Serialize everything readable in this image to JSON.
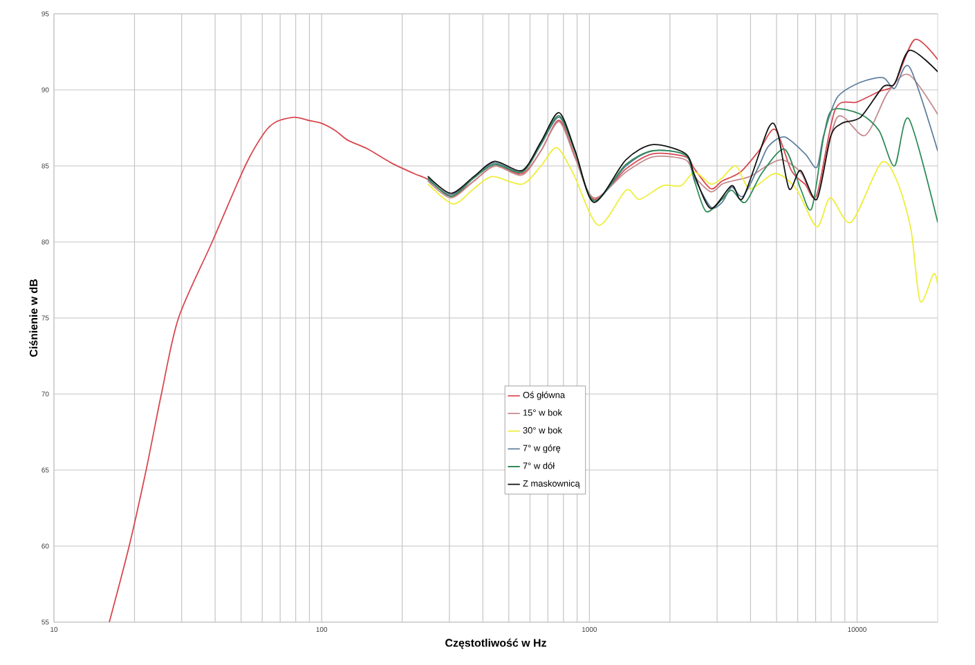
{
  "chart_data": {
    "type": "line",
    "xlabel": "Częstotliwość w Hz",
    "ylabel": "Ciśnienie w dB",
    "xlim": [
      10,
      20000
    ],
    "ylim": [
      55,
      95
    ],
    "xticks": [
      10,
      100,
      1000,
      10000
    ],
    "yticks": [
      55,
      60,
      65,
      70,
      75,
      80,
      85,
      90,
      95
    ],
    "log": "x",
    "grid": true,
    "legend": "bottom",
    "series": [
      {
        "name": "Oś główna",
        "color": "#d8474f",
        "x": [
          16.1,
          19.1,
          22.1,
          25.2,
          29.2,
          39.0,
          51.8,
          61.2,
          67.6,
          79,
          89,
          100,
          113,
          125,
          149,
          182,
          221,
          250,
          304,
          370,
          443,
          561,
          660,
          771,
          885,
          1040,
          1370,
          1730,
          2290,
          2470,
          2840,
          3130,
          3670,
          4300,
          4940,
          5680,
          6390,
          7070,
          8280,
          10000,
          12100,
          13800,
          16400,
          20000
        ],
        "values": [
          55,
          60,
          65,
          70,
          75,
          80,
          85,
          87.2,
          87.9,
          88.2,
          88.0,
          87.8,
          87.3,
          86.7,
          86.1,
          85.2,
          84.5,
          84.1,
          83.0,
          84.0,
          85.0,
          84.5,
          86.0,
          88.0,
          85.6,
          82.8,
          84.8,
          85.8,
          85.6,
          84.8,
          83.5,
          84.0,
          84.6,
          86.0,
          87.4,
          84.7,
          83.8,
          83.1,
          88.7,
          89.2,
          89.9,
          90.4,
          93.3,
          92.0
        ]
      },
      {
        "name": "15° w bok",
        "color": "#c48a8e",
        "x": [
          250,
          304,
          370,
          443,
          561,
          660,
          771,
          885,
          1040,
          1370,
          1730,
          2290,
          2470,
          2840,
          3130,
          3400,
          3980,
          4600,
          5250,
          6150,
          7070,
          8430,
          10700,
          13000,
          15600,
          20000
        ],
        "values": [
          84.0,
          82.9,
          84.0,
          85.0,
          84.4,
          86.0,
          87.9,
          85.5,
          82.9,
          84.6,
          85.6,
          85.4,
          84.3,
          83.3,
          83.8,
          84.0,
          84.3,
          85.0,
          85.4,
          84.6,
          83.0,
          88.2,
          87.0,
          89.8,
          91.0,
          88.4
        ]
      },
      {
        "name": "30° w bok",
        "color": "#eeee3a",
        "x": [
          250,
          310,
          370,
          434,
          561,
          660,
          755,
          870,
          1080,
          1370,
          1540,
          1880,
          2200,
          2470,
          2840,
          3130,
          3530,
          3980,
          4940,
          5920,
          7070,
          7950,
          9500,
          12300,
          14100,
          15900,
          17200,
          19300,
          20000
        ],
        "values": [
          83.8,
          82.5,
          83.5,
          84.3,
          83.8,
          85.0,
          86.2,
          84.5,
          81.1,
          83.4,
          82.8,
          83.7,
          83.7,
          84.6,
          83.8,
          84.2,
          85.0,
          83.5,
          84.5,
          83.5,
          81.0,
          82.9,
          81.3,
          85.2,
          84.0,
          80.8,
          76.1,
          77.9,
          77.2
        ]
      },
      {
        "name": "7° w górę",
        "color": "#5f7f9f",
        "x": [
          250,
          304,
          370,
          443,
          561,
          660,
          771,
          885,
          1040,
          1370,
          1730,
          2290,
          2470,
          2840,
          3130,
          3400,
          3750,
          4300,
          4670,
          5360,
          6390,
          7070,
          7500,
          8430,
          10300,
          12500,
          13800,
          15700,
          20000
        ],
        "values": [
          84.1,
          83.1,
          84.2,
          85.2,
          84.6,
          86.4,
          88.2,
          85.9,
          82.7,
          85.0,
          86.0,
          85.7,
          84.2,
          82.3,
          82.6,
          83.6,
          83.0,
          85.0,
          86.3,
          86.9,
          85.8,
          84.9,
          87.0,
          89.5,
          90.5,
          90.8,
          90.1,
          91.5,
          86.0
        ]
      },
      {
        "name": "7° w dół",
        "color": "#2e8b57",
        "x": [
          250,
          304,
          370,
          443,
          561,
          660,
          771,
          885,
          1040,
          1370,
          1730,
          2290,
          2470,
          2730,
          3130,
          3400,
          3820,
          4400,
          5360,
          6150,
          6770,
          7500,
          8110,
          10300,
          12100,
          13800,
          15600,
          20000
        ],
        "values": [
          84.2,
          83.0,
          84.2,
          85.1,
          84.6,
          86.5,
          88.3,
          85.9,
          82.7,
          85.1,
          86.0,
          85.7,
          84.0,
          82.0,
          82.8,
          83.4,
          82.6,
          84.5,
          86.1,
          83.5,
          82.2,
          86.9,
          88.7,
          88.4,
          87.3,
          85.0,
          88.1,
          81.3
        ]
      },
      {
        "name": "Z maskownicą",
        "color": "#111111",
        "x": [
          250,
          304,
          370,
          443,
          561,
          660,
          771,
          885,
          1040,
          1370,
          1730,
          2290,
          2470,
          2840,
          3400,
          3750,
          4670,
          5050,
          5570,
          6150,
          7070,
          7950,
          8770,
          10300,
          12500,
          13800,
          15700,
          20000
        ],
        "values": [
          84.3,
          83.2,
          84.3,
          85.3,
          84.7,
          86.6,
          88.5,
          86.0,
          82.6,
          85.4,
          86.4,
          85.8,
          84.4,
          82.2,
          83.7,
          82.9,
          87.5,
          87.2,
          83.5,
          84.7,
          82.8,
          86.9,
          87.8,
          88.2,
          90.2,
          90.4,
          92.6,
          91.2
        ]
      }
    ]
  }
}
